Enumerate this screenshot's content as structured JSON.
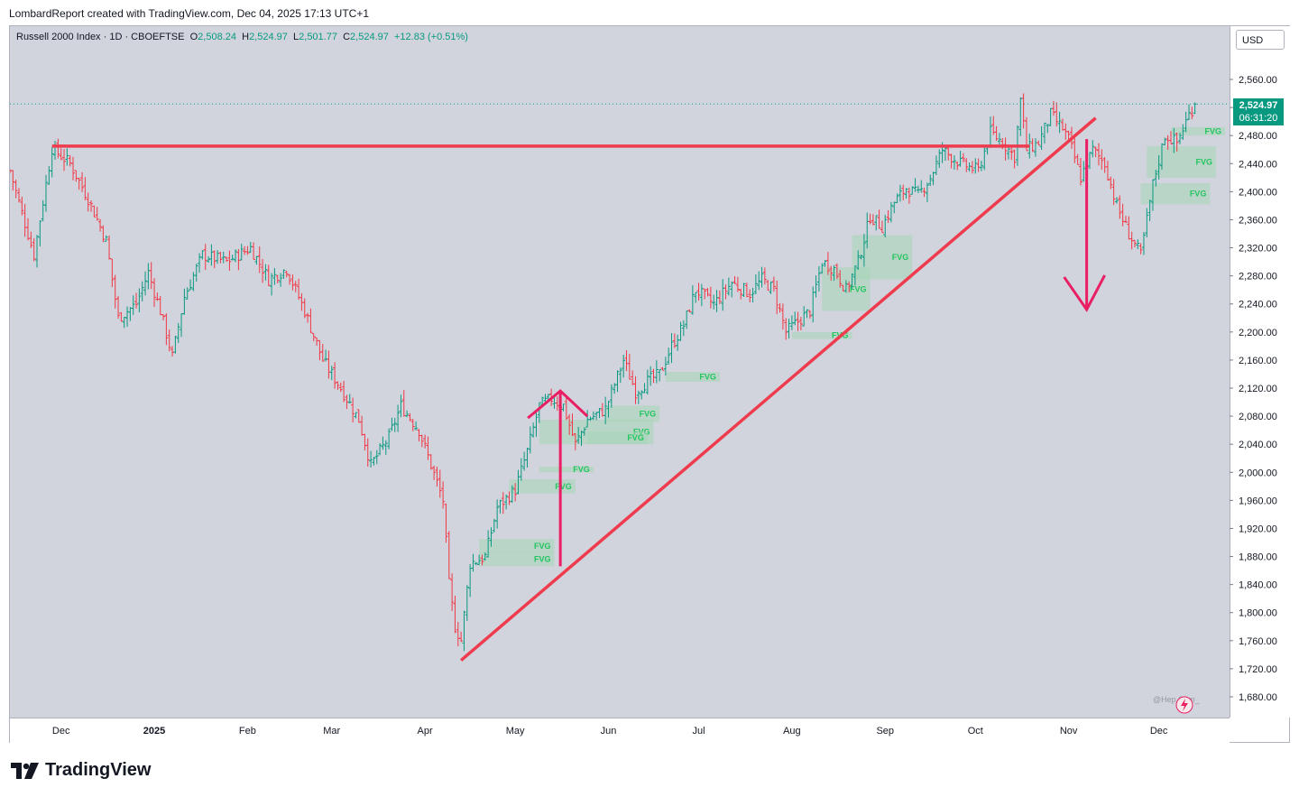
{
  "header": {
    "credit": "LombardReport created with TradingView.com, Dec 04, 2025 17:13 UTC+1"
  },
  "legend": {
    "symbol": "Russell 2000 Index · 1D · CBOEFTSE",
    "o_label": "O",
    "o_value": "2,508.24",
    "h_label": "H",
    "h_value": "2,524.97",
    "l_label": "L",
    "l_value": "2,501.77",
    "c_label": "C",
    "c_value": "2,524.97",
    "change": "+12.83 (+0.51%)"
  },
  "currency": "USD",
  "last_price": {
    "value": "2,524.97",
    "countdown": "06:31:20"
  },
  "watermark": "@Hep  Sam_",
  "brand": "TradingView",
  "colors": {
    "up": "#089981",
    "down": "#f23645",
    "line": "#ee3b4e",
    "arrow": "#e91e63",
    "fvg_fill": "#a5d6b7",
    "fvg_text": "#22c55e",
    "plot_bg": "#d1d4dc"
  },
  "chart_data": {
    "type": "bar",
    "title": "Russell 2000 Index · 1D · CBOEFTSE",
    "ylim": [
      1650,
      2600
    ],
    "y_ticks": [
      1680,
      1720,
      1760,
      1800,
      1840,
      1880,
      1920,
      1960,
      2000,
      2040,
      2080,
      2120,
      2160,
      2200,
      2240,
      2280,
      2320,
      2360,
      2400,
      2440,
      2480,
      2520,
      2560
    ],
    "y_tick_labels": [
      "1,680.00",
      "1,720.00",
      "1,760.00",
      "1,800.00",
      "1,840.00",
      "1,880.00",
      "1,920.00",
      "1,960.00",
      "2,000.00",
      "2,040.00",
      "2,080.00",
      "2,120.00",
      "2,160.00",
      "2,200.00",
      "2,240.00",
      "2,280.00",
      "2,320.00",
      "2,360.00",
      "2,400.00",
      "2,440.00",
      "2,480.00",
      "2,520.00",
      "2,560.00"
    ],
    "x_labels": [
      "Dec",
      "2025",
      "Feb",
      "Mar",
      "Apr",
      "May",
      "Jun",
      "Jul",
      "Aug",
      "Sep",
      "Oct",
      "Nov",
      "Dec"
    ],
    "x_label_days": [
      17,
      48,
      79,
      107,
      138,
      168,
      199,
      229,
      260,
      291,
      321,
      352,
      382
    ],
    "x_range_days": [
      0,
      404
    ],
    "price_path": [
      [
        0,
        2430
      ],
      [
        8,
        2310
      ],
      [
        14,
        2462
      ],
      [
        20,
        2440
      ],
      [
        26,
        2390
      ],
      [
        32,
        2330
      ],
      [
        36,
        2220
      ],
      [
        42,
        2240
      ],
      [
        46,
        2285
      ],
      [
        50,
        2230
      ],
      [
        54,
        2165
      ],
      [
        58,
        2250
      ],
      [
        64,
        2310
      ],
      [
        72,
        2300
      ],
      [
        80,
        2320
      ],
      [
        86,
        2275
      ],
      [
        92,
        2290
      ],
      [
        98,
        2230
      ],
      [
        104,
        2160
      ],
      [
        110,
        2120
      ],
      [
        116,
        2075
      ],
      [
        120,
        2010
      ],
      [
        126,
        2050
      ],
      [
        130,
        2095
      ],
      [
        136,
        2060
      ],
      [
        140,
        2010
      ],
      [
        144,
        1960
      ],
      [
        146,
        1840
      ],
      [
        148,
        1780
      ],
      [
        150,
        1760
      ],
      [
        153,
        1870
      ],
      [
        158,
        1880
      ],
      [
        162,
        1950
      ],
      [
        168,
        1975
      ],
      [
        172,
        2030
      ],
      [
        176,
        2095
      ],
      [
        180,
        2105
      ],
      [
        184,
        2095
      ],
      [
        188,
        2040
      ],
      [
        192,
        2075
      ],
      [
        198,
        2090
      ],
      [
        204,
        2160
      ],
      [
        208,
        2115
      ],
      [
        212,
        2130
      ],
      [
        216,
        2140
      ],
      [
        220,
        2180
      ],
      [
        224,
        2210
      ],
      [
        228,
        2260
      ],
      [
        234,
        2240
      ],
      [
        240,
        2270
      ],
      [
        246,
        2255
      ],
      [
        250,
        2275
      ],
      [
        254,
        2260
      ],
      [
        258,
        2200
      ],
      [
        262,
        2215
      ],
      [
        266,
        2230
      ],
      [
        270,
        2300
      ],
      [
        274,
        2290
      ],
      [
        278,
        2260
      ],
      [
        282,
        2300
      ],
      [
        286,
        2365
      ],
      [
        290,
        2350
      ],
      [
        294,
        2385
      ],
      [
        298,
        2405
      ],
      [
        302,
        2395
      ],
      [
        306,
        2420
      ],
      [
        310,
        2460
      ],
      [
        316,
        2440
      ],
      [
        322,
        2430
      ],
      [
        326,
        2485
      ],
      [
        330,
        2470
      ],
      [
        334,
        2450
      ],
      [
        336,
        2530
      ],
      [
        338,
        2460
      ],
      [
        342,
        2470
      ],
      [
        346,
        2510
      ],
      [
        350,
        2490
      ],
      [
        352,
        2475
      ],
      [
        356,
        2420
      ],
      [
        360,
        2460
      ],
      [
        364,
        2440
      ],
      [
        368,
        2380
      ],
      [
        372,
        2340
      ],
      [
        376,
        2310
      ],
      [
        380,
        2410
      ],
      [
        384,
        2480
      ],
      [
        388,
        2470
      ],
      [
        392,
        2510
      ],
      [
        394,
        2524.97
      ]
    ],
    "annotations": {
      "resistance_line": {
        "y": 2465,
        "x_start": 14,
        "x_end": 339
      },
      "trendline": {
        "x_start": 150,
        "y_start": 1732,
        "x_end": 361,
        "y_end": 2505
      },
      "up_arrow": {
        "x": 183,
        "y_start": 1866,
        "y_end": 2116
      },
      "down_arrow": {
        "x": 358,
        "y_start": 2475,
        "y_end": 2232
      },
      "fvg_label": "FVG",
      "fvg_zones": [
        {
          "x0": 156,
          "x1": 181,
          "y0": 1885,
          "y1": 1905
        },
        {
          "x0": 156,
          "x1": 181,
          "y0": 1866,
          "y1": 1886
        },
        {
          "x0": 166,
          "x1": 188,
          "y0": 1970,
          "y1": 1990
        },
        {
          "x0": 176,
          "x1": 194,
          "y0": 2000,
          "y1": 2008
        },
        {
          "x0": 176,
          "x1": 214,
          "y0": 2040,
          "y1": 2075
        },
        {
          "x0": 192,
          "x1": 212,
          "y0": 2040,
          "y1": 2058
        },
        {
          "x0": 198,
          "x1": 216,
          "y0": 2072,
          "y1": 2095
        },
        {
          "x0": 218,
          "x1": 236,
          "y0": 2129,
          "y1": 2143
        },
        {
          "x0": 260,
          "x1": 280,
          "y0": 2190,
          "y1": 2200
        },
        {
          "x0": 270,
          "x1": 286,
          "y0": 2230,
          "y1": 2292
        },
        {
          "x0": 280,
          "x1": 300,
          "y0": 2275,
          "y1": 2338
        },
        {
          "x0": 376,
          "x1": 399,
          "y0": 2382,
          "y1": 2412
        },
        {
          "x0": 378,
          "x1": 401,
          "y0": 2420,
          "y1": 2465
        },
        {
          "x0": 386,
          "x1": 404,
          "y0": 2480,
          "y1": 2492
        }
      ]
    }
  }
}
